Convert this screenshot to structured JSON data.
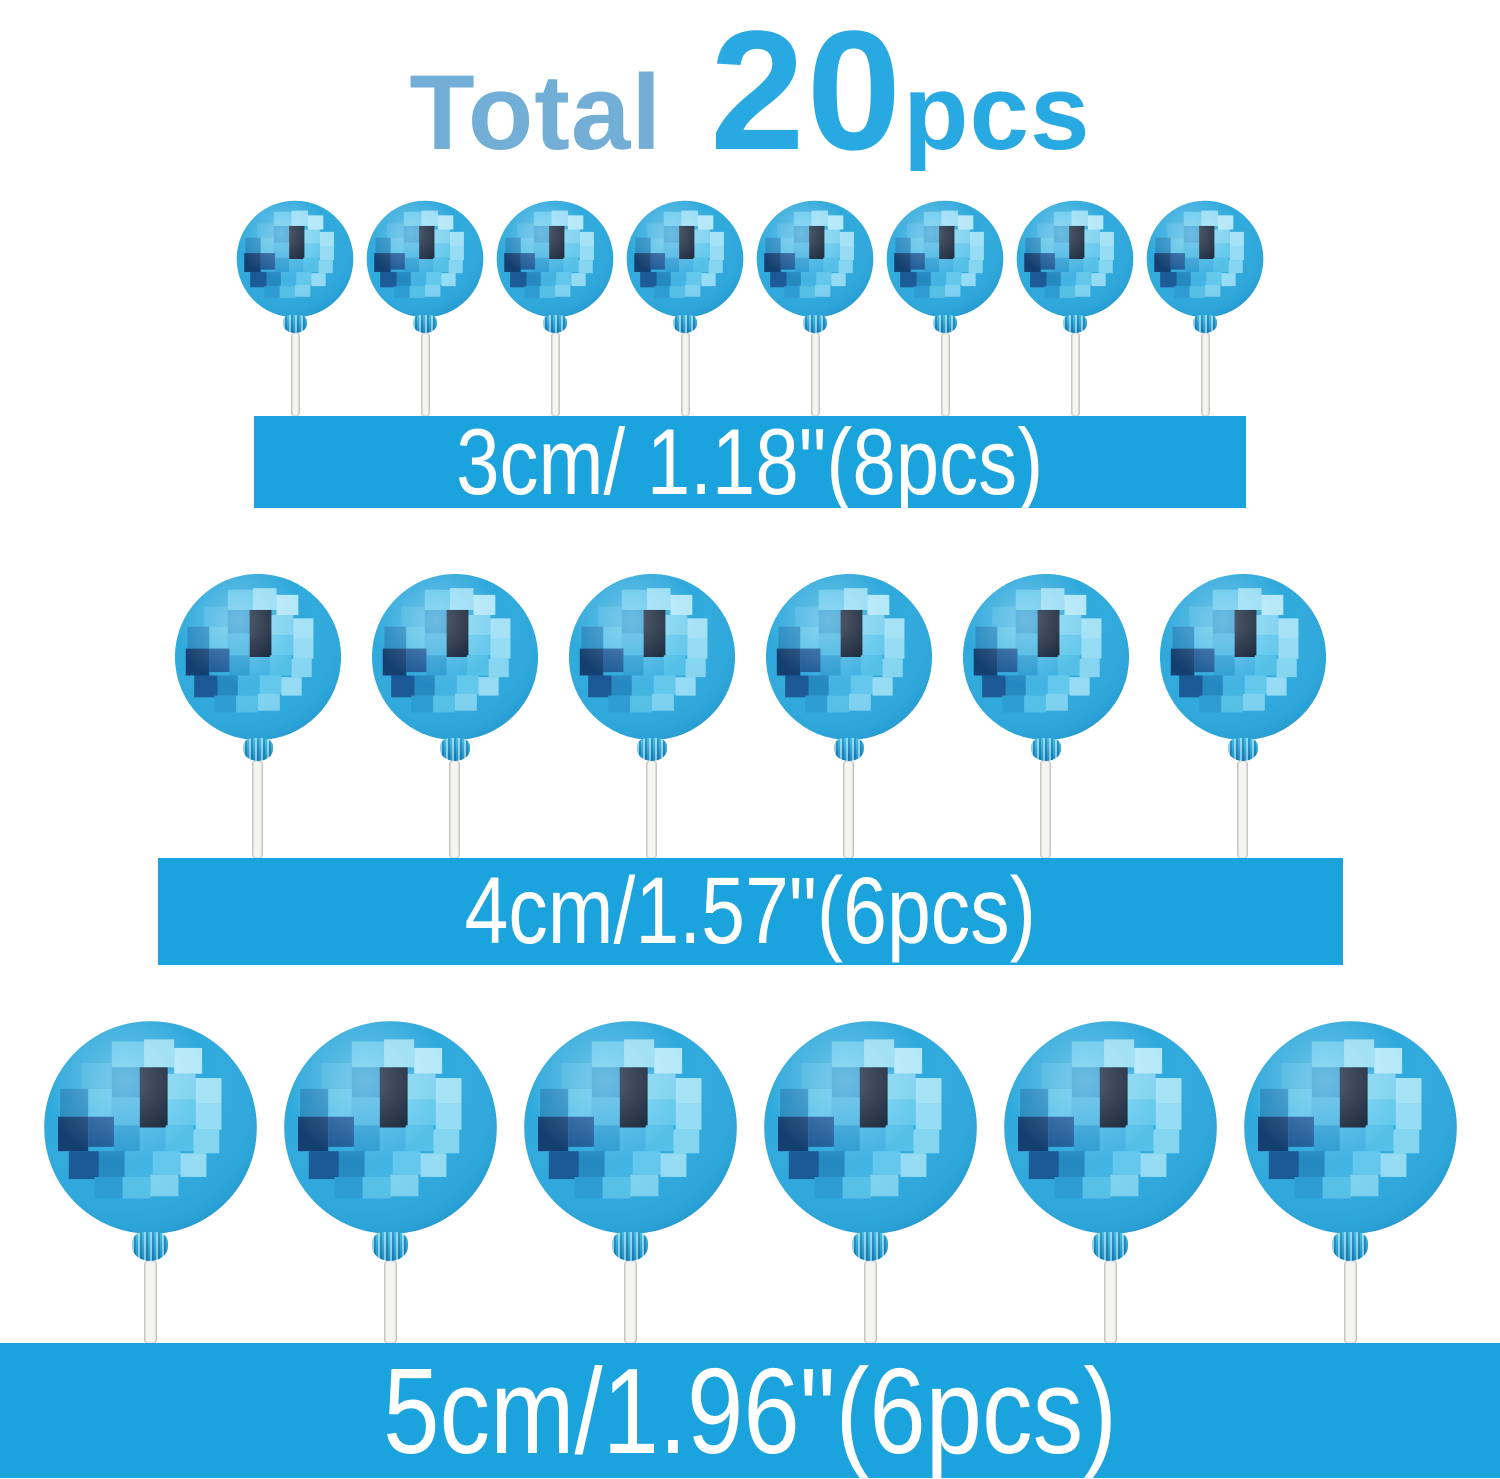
{
  "title": {
    "prefix": "Total",
    "count": "20",
    "unit": "pcs"
  },
  "rows": [
    {
      "size_label": "3cm/ 1.18\"(8pcs)",
      "count": 8
    },
    {
      "size_label": "4cm/1.57\"(6pcs)",
      "count": 6
    },
    {
      "size_label": "5cm/1.96\"(6pcs)",
      "count": 6
    }
  ],
  "colors": {
    "banner_blue": "#1aa3dc",
    "title_muted_blue": "#72aed6",
    "title_bright_blue": "#29a9e2",
    "banner_text": "#ffffff",
    "ball_blue": "#2fa9dc"
  }
}
